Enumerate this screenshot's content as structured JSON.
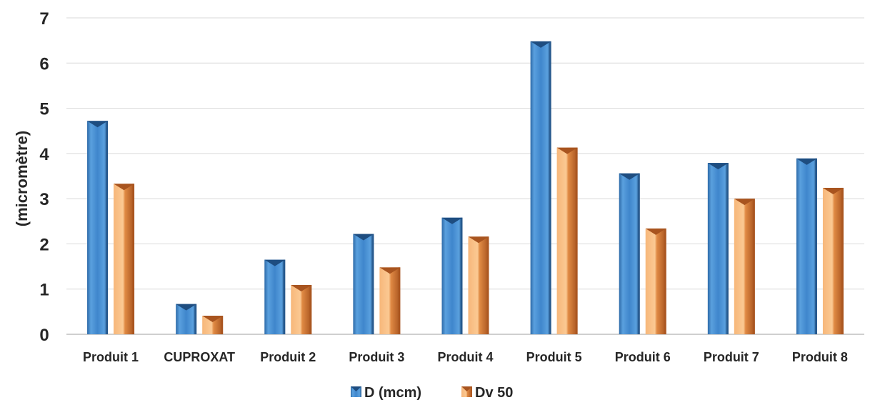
{
  "chart_data": {
    "type": "bar",
    "title": "",
    "xlabel": "",
    "ylabel": "(micromètre)",
    "ylim": [
      0,
      7
    ],
    "yticks": [
      "0",
      "1",
      "2",
      "3",
      "4",
      "5",
      "6",
      "7"
    ],
    "grid": true,
    "legend_position": "bottom",
    "categories": [
      "Produit 1",
      "CUPROXAT",
      "Produit 2",
      "Produit 3",
      "Produit 4",
      "Produit 5",
      "Produit 6",
      "Produit 7",
      "Produit 8"
    ],
    "series": [
      {
        "name": "D (mcm)",
        "values": [
          4.72,
          0.67,
          1.65,
          2.22,
          2.58,
          6.48,
          3.56,
          3.79,
          3.89
        ]
      },
      {
        "name": "Dv 50",
        "values": [
          3.33,
          0.41,
          1.09,
          1.48,
          2.16,
          4.13,
          2.34,
          3.0,
          3.24
        ]
      }
    ]
  },
  "colors": {
    "series_1": "#3a7fc4",
    "series_1_light": "#5fa3e0",
    "series_1_dark": "#1e4d80",
    "series_2": "#f5a964",
    "series_2_light": "#fbc993",
    "series_2_dark": "#a8541f",
    "grid": "#d9d9d9",
    "axis": "#bfbfbf",
    "text": "#262626"
  }
}
